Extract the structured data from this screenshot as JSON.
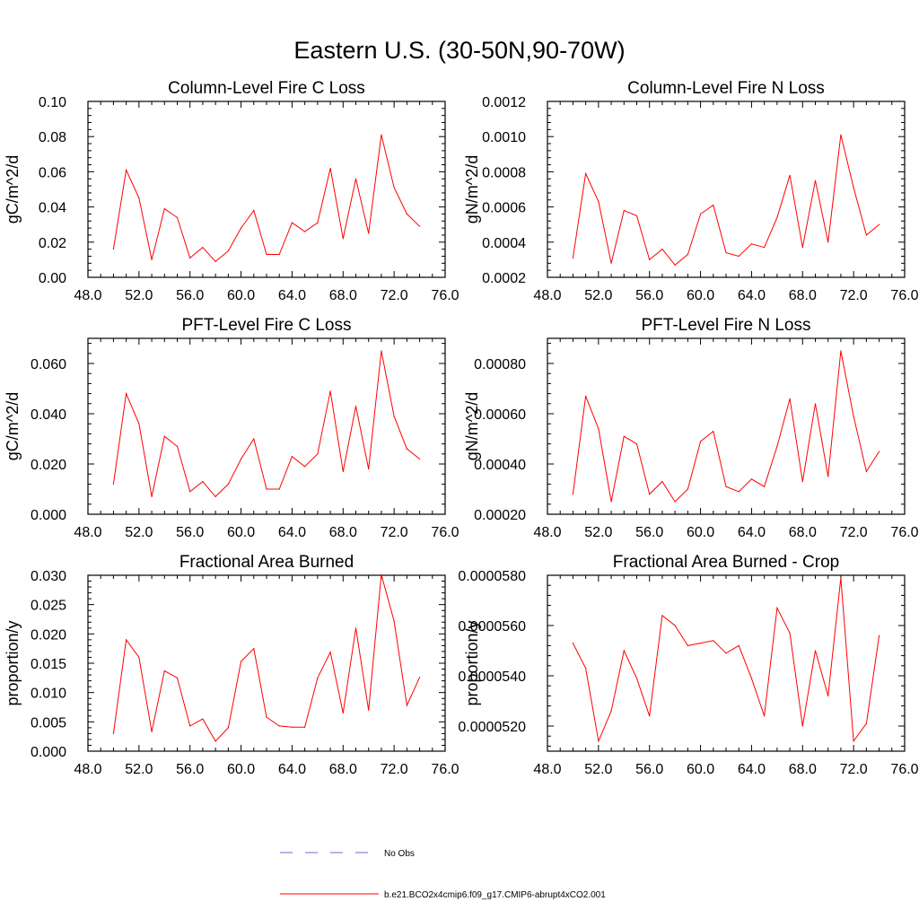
{
  "figure": {
    "title": "Eastern U.S. (30-50N,90-70W)"
  },
  "legend": [
    {
      "label": "No Obs",
      "color": "#6a6acd",
      "style": "dashed"
    },
    {
      "label": "b.e21.BCO2x4cmip6.f09_g17.CMIP6-abrupt4xCO2.001",
      "color": "#ff0000",
      "style": "solid"
    }
  ],
  "chart_data": [
    {
      "type": "line",
      "title": "Column-Level Fire C Loss",
      "ylabel": "gC/m^2/d",
      "xlim": [
        48,
        76
      ],
      "ylim": [
        0,
        0.1
      ],
      "xticks": [
        "48.0",
        "52.0",
        "56.0",
        "60.0",
        "64.0",
        "68.0",
        "72.0",
        "76.0"
      ],
      "yticks": [
        {
          "value": 0.0,
          "label": "0.00"
        },
        {
          "value": 0.02,
          "label": "0.02"
        },
        {
          "value": 0.04,
          "label": "0.04"
        },
        {
          "value": 0.06,
          "label": "0.06"
        },
        {
          "value": 0.08,
          "label": "0.08"
        },
        {
          "value": 0.1,
          "label": "0.10"
        }
      ],
      "series": [
        {
          "name": "b.e21.BCO2x4cmip6.f09_g17.CMIP6-abrupt4xCO2.001",
          "color": "#ff0000",
          "x": [
            50,
            51,
            52,
            53,
            54,
            55,
            56,
            57,
            58,
            59,
            60,
            61,
            62,
            63,
            64,
            65,
            66,
            67,
            68,
            69,
            70,
            71,
            72,
            73,
            74
          ],
          "values": [
            0.016,
            0.061,
            0.045,
            0.01,
            0.039,
            0.034,
            0.011,
            0.017,
            0.009,
            0.015,
            0.028,
            0.038,
            0.013,
            0.013,
            0.031,
            0.026,
            0.031,
            0.062,
            0.022,
            0.056,
            0.025,
            0.081,
            0.051,
            0.036,
            0.029
          ]
        }
      ]
    },
    {
      "type": "line",
      "title": "Column-Level Fire N Loss",
      "ylabel": "gN/m^2/d",
      "xlim": [
        48,
        76
      ],
      "ylim": [
        0.0002,
        0.0012
      ],
      "xticks": [
        "48.0",
        "52.0",
        "56.0",
        "60.0",
        "64.0",
        "68.0",
        "72.0",
        "76.0"
      ],
      "yticks": [
        {
          "value": 0.0002,
          "label": "0.0002"
        },
        {
          "value": 0.0004,
          "label": "0.0004"
        },
        {
          "value": 0.0006,
          "label": "0.0006"
        },
        {
          "value": 0.0008,
          "label": "0.0008"
        },
        {
          "value": 0.001,
          "label": "0.0010"
        },
        {
          "value": 0.0012,
          "label": "0.0012"
        }
      ],
      "series": [
        {
          "name": "b.e21.BCO2x4cmip6.f09_g17.CMIP6-abrupt4xCO2.001",
          "color": "#ff0000",
          "x": [
            50,
            51,
            52,
            53,
            54,
            55,
            56,
            57,
            58,
            59,
            60,
            61,
            62,
            63,
            64,
            65,
            66,
            67,
            68,
            69,
            70,
            71,
            72,
            73,
            74
          ],
          "values": [
            0.00031,
            0.00079,
            0.00063,
            0.00028,
            0.00058,
            0.00055,
            0.0003,
            0.00036,
            0.00027,
            0.00033,
            0.00056,
            0.00061,
            0.00034,
            0.00032,
            0.00039,
            0.00037,
            0.00054,
            0.00078,
            0.00037,
            0.00075,
            0.0004,
            0.00101,
            0.00071,
            0.00044,
            0.0005
          ]
        }
      ]
    },
    {
      "type": "line",
      "title": "PFT-Level Fire C Loss",
      "ylabel": "gC/m^2/d",
      "xlim": [
        48,
        76
      ],
      "ylim": [
        0,
        0.07
      ],
      "xticks": [
        "48.0",
        "52.0",
        "56.0",
        "60.0",
        "64.0",
        "68.0",
        "72.0",
        "76.0"
      ],
      "yticks": [
        {
          "value": 0.0,
          "label": "0.000"
        },
        {
          "value": 0.02,
          "label": "0.020"
        },
        {
          "value": 0.04,
          "label": "0.040"
        },
        {
          "value": 0.06,
          "label": "0.060"
        }
      ],
      "series": [
        {
          "name": "b.e21.BCO2x4cmip6.f09_g17.CMIP6-abrupt4xCO2.001",
          "color": "#ff0000",
          "x": [
            50,
            51,
            52,
            53,
            54,
            55,
            56,
            57,
            58,
            59,
            60,
            61,
            62,
            63,
            64,
            65,
            66,
            67,
            68,
            69,
            70,
            71,
            72,
            73,
            74
          ],
          "values": [
            0.012,
            0.048,
            0.036,
            0.007,
            0.031,
            0.027,
            0.009,
            0.013,
            0.007,
            0.012,
            0.022,
            0.03,
            0.01,
            0.01,
            0.023,
            0.019,
            0.024,
            0.049,
            0.017,
            0.043,
            0.018,
            0.065,
            0.039,
            0.026,
            0.022
          ]
        }
      ]
    },
    {
      "type": "line",
      "title": "PFT-Level Fire N Loss",
      "ylabel": "gN/m^2/d",
      "xlim": [
        48,
        76
      ],
      "ylim": [
        0.0002,
        0.0009
      ],
      "xticks": [
        "48.0",
        "52.0",
        "56.0",
        "60.0",
        "64.0",
        "68.0",
        "72.0",
        "76.0"
      ],
      "yticks": [
        {
          "value": 0.0002,
          "label": "0.00020"
        },
        {
          "value": 0.0004,
          "label": "0.00040"
        },
        {
          "value": 0.0006,
          "label": "0.00060"
        },
        {
          "value": 0.0008,
          "label": "0.00080"
        }
      ],
      "series": [
        {
          "name": "b.e21.BCO2x4cmip6.f09_g17.CMIP6-abrupt4xCO2.001",
          "color": "#ff0000",
          "x": [
            50,
            51,
            52,
            53,
            54,
            55,
            56,
            57,
            58,
            59,
            60,
            61,
            62,
            63,
            64,
            65,
            66,
            67,
            68,
            69,
            70,
            71,
            72,
            73,
            74
          ],
          "values": [
            0.00028,
            0.00067,
            0.00054,
            0.00025,
            0.00051,
            0.00048,
            0.00028,
            0.00033,
            0.00025,
            0.0003,
            0.00049,
            0.00053,
            0.00031,
            0.00029,
            0.00034,
            0.00031,
            0.00047,
            0.00066,
            0.00033,
            0.00064,
            0.00035,
            0.00085,
            0.00059,
            0.00037,
            0.00045
          ]
        }
      ]
    },
    {
      "type": "line",
      "title": "Fractional Area Burned",
      "ylabel": "proportion/y",
      "xlim": [
        48,
        76
      ],
      "ylim": [
        0,
        0.03
      ],
      "xticks": [
        "48.0",
        "52.0",
        "56.0",
        "60.0",
        "64.0",
        "68.0",
        "72.0",
        "76.0"
      ],
      "yticks": [
        {
          "value": 0.0,
          "label": "0.000"
        },
        {
          "value": 0.005,
          "label": "0.005"
        },
        {
          "value": 0.01,
          "label": "0.010"
        },
        {
          "value": 0.015,
          "label": "0.015"
        },
        {
          "value": 0.02,
          "label": "0.020"
        },
        {
          "value": 0.025,
          "label": "0.025"
        },
        {
          "value": 0.03,
          "label": "0.030"
        }
      ],
      "series": [
        {
          "name": "b.e21.BCO2x4cmip6.f09_g17.CMIP6-abrupt4xCO2.001",
          "color": "#ff0000",
          "x": [
            50,
            51,
            52,
            53,
            54,
            55,
            56,
            57,
            58,
            59,
            60,
            61,
            62,
            63,
            64,
            65,
            66,
            67,
            68,
            69,
            70,
            71,
            72,
            73,
            74
          ],
          "values": [
            0.003,
            0.019,
            0.016,
            0.0033,
            0.0137,
            0.0125,
            0.0043,
            0.0055,
            0.0017,
            0.004,
            0.0153,
            0.0175,
            0.0058,
            0.0043,
            0.0041,
            0.0041,
            0.0125,
            0.0169,
            0.0065,
            0.021,
            0.007,
            0.0301,
            0.0222,
            0.0078,
            0.0126
          ]
        }
      ]
    },
    {
      "type": "line",
      "title": "Fractional Area Burned - Crop",
      "ylabel": "proportion/y",
      "xlim": [
        48,
        76
      ],
      "ylim": [
        5.1e-05,
        5.8e-05
      ],
      "xticks": [
        "48.0",
        "52.0",
        "56.0",
        "60.0",
        "64.0",
        "68.0",
        "72.0",
        "76.0"
      ],
      "yticks": [
        {
          "value": 5.2e-05,
          "label": "0.0000520"
        },
        {
          "value": 5.4e-05,
          "label": "0.0000540"
        },
        {
          "value": 5.6e-05,
          "label": "0.0000560"
        },
        {
          "value": 5.8e-05,
          "label": "0.0000580"
        }
      ],
      "series": [
        {
          "name": "b.e21.BCO2x4cmip6.f09_g17.CMIP6-abrupt4xCO2.001",
          "color": "#ff0000",
          "x": [
            50,
            51,
            52,
            53,
            54,
            55,
            56,
            57,
            58,
            59,
            60,
            61,
            62,
            63,
            64,
            65,
            66,
            67,
            68,
            69,
            70,
            71,
            72,
            73,
            74
          ],
          "values": [
            5.53e-05,
            5.43e-05,
            5.14e-05,
            5.26e-05,
            5.5e-05,
            5.39e-05,
            5.24e-05,
            5.64e-05,
            5.6e-05,
            5.52e-05,
            5.53e-05,
            5.54e-05,
            5.49e-05,
            5.52e-05,
            5.39e-05,
            5.24e-05,
            5.67e-05,
            5.57e-05,
            5.2e-05,
            5.5e-05,
            5.32e-05,
            5.79e-05,
            5.14e-05,
            5.21e-05,
            5.56e-05
          ]
        }
      ]
    }
  ]
}
